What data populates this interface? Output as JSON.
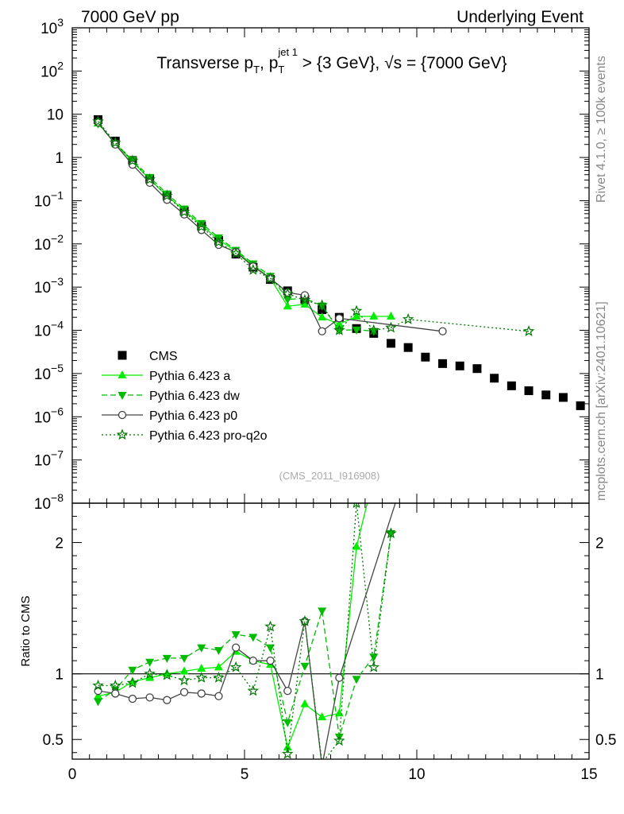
{
  "header": {
    "left": "7000 GeV pp",
    "right": "Underlying Event"
  },
  "title": {
    "pre": "Transverse p",
    "sub1": "T",
    "mid": ", p",
    "sub2": "T",
    "sup2": "jet 1",
    "post": " > {3 GeV}, √s = {7000 GeV}"
  },
  "side_labels": {
    "rivet": "Rivet 4.1.0, ≥ 100k events",
    "mcplots": "mcplots.cern.ch [arXiv:2401.10621]"
  },
  "watermark": "(CMS_2011_I916908)",
  "ratio_ylabel": "Ratio to CMS",
  "colors": {
    "cms": "#000000",
    "a": "#00ee00",
    "dw": "#00bb00",
    "p0": "#444444",
    "q2o": "#007700"
  },
  "chart_data": {
    "type": "line",
    "main": {
      "yscale": "log",
      "xlim": [
        0,
        15
      ],
      "ylim": [
        1e-08,
        1000
      ],
      "yticks": [
        {
          "v": 1000,
          "b": "10",
          "e": "3"
        },
        {
          "v": 100,
          "b": "10",
          "e": "2"
        },
        {
          "v": 10,
          "b": "10",
          "e": ""
        },
        {
          "v": 1,
          "b": "1",
          "e": ""
        },
        {
          "v": 0.1,
          "b": "10",
          "e": "−1"
        },
        {
          "v": 0.01,
          "b": "10",
          "e": "−2"
        },
        {
          "v": 0.001,
          "b": "10",
          "e": "−3"
        },
        {
          "v": 0.0001,
          "b": "10",
          "e": "−4"
        },
        {
          "v": 1e-05,
          "b": "10",
          "e": "−5"
        },
        {
          "v": 1e-06,
          "b": "10",
          "e": "−6"
        },
        {
          "v": 1e-07,
          "b": "10",
          "e": "−7"
        },
        {
          "v": 1e-08,
          "b": "10",
          "e": "−8"
        }
      ],
      "series": [
        {
          "name": "CMS",
          "key": "cms",
          "marker": "square",
          "dash": "none",
          "x": [
            0.75,
            1.25,
            1.75,
            2.25,
            2.75,
            3.25,
            3.75,
            4.25,
            4.75,
            5.25,
            5.75,
            6.25,
            6.75,
            7.25,
            7.75,
            8.25,
            8.75,
            9.25,
            9.75,
            10.25,
            10.75,
            11.25,
            11.75,
            12.25,
            12.75,
            13.25,
            13.75,
            14.25,
            14.75
          ],
          "y": [
            7.5,
            2.4,
            0.85,
            0.32,
            0.13,
            0.058,
            0.026,
            0.012,
            0.0058,
            0.0029,
            0.0015,
            0.00082,
            0.00052,
            0.0003,
            0.0002,
            0.00011,
            8.5e-05,
            5e-05,
            4e-05,
            2.4e-05,
            1.7e-05,
            1.5e-05,
            1.3e-05,
            7.8e-06,
            5.2e-06,
            4e-06,
            3.2e-06,
            2.8e-06,
            1.8e-06
          ]
        },
        {
          "name": "Pythia 6.423 a",
          "key": "a",
          "marker": "triangle-up",
          "dash": "none",
          "x": [
            0.75,
            1.25,
            1.75,
            2.25,
            2.75,
            3.25,
            3.75,
            4.25,
            4.75,
            5.25,
            5.75,
            6.25,
            6.75,
            7.25,
            7.75,
            8.25,
            8.75,
            9.25
          ],
          "y": [
            6.2,
            2.1,
            0.8,
            0.31,
            0.13,
            0.059,
            0.027,
            0.0125,
            0.0068,
            0.0032,
            0.0016,
            0.00036,
            0.0004,
            0.0002,
            0.00014,
            0.00021,
            0.00021,
            0.00021
          ]
        },
        {
          "name": "Pythia 6.423 dw",
          "key": "dw",
          "marker": "triangle-down",
          "dash": "7,4",
          "x": [
            0.75,
            1.25,
            1.75,
            2.25,
            2.75,
            3.25,
            3.75,
            4.25,
            4.75,
            5.25,
            5.75,
            6.25,
            6.75,
            7.25,
            7.75,
            8.25,
            8.75
          ],
          "y": [
            6.0,
            2.1,
            0.88,
            0.35,
            0.145,
            0.065,
            0.03,
            0.014,
            0.0072,
            0.0035,
            0.0018,
            0.00052,
            0.00055,
            0.00037,
            0.0001,
            0.000103,
            9.6e-05
          ]
        },
        {
          "name": "Pythia 6.423 p0",
          "key": "p0",
          "marker": "circle",
          "dash": "none",
          "x": [
            0.75,
            1.25,
            1.75,
            2.25,
            2.75,
            3.25,
            3.75,
            4.25,
            4.75,
            5.25,
            5.75,
            6.25,
            6.75,
            7.25,
            7.75,
            10.75
          ],
          "y": [
            6.5,
            2.0,
            0.68,
            0.26,
            0.105,
            0.048,
            0.021,
            0.0095,
            0.0065,
            0.003,
            0.0016,
            0.00075,
            0.00065,
            9.5e-05,
            0.00019,
            9.5e-05
          ]
        },
        {
          "name": "Pythia 6.423 pro-q2o",
          "key": "q2o",
          "marker": "star",
          "dash": "2,3",
          "x": [
            0.75,
            1.25,
            1.75,
            2.25,
            2.75,
            3.25,
            3.75,
            4.25,
            4.75,
            5.25,
            5.75,
            6.25,
            6.75,
            7.25,
            7.75,
            8.25,
            8.75,
            9.25,
            9.75,
            13.25
          ],
          "y": [
            6.8,
            2.2,
            0.84,
            0.31,
            0.13,
            0.055,
            0.025,
            0.011,
            0.006,
            0.0025,
            0.0016,
            0.0007,
            0.0005,
            0.00038,
            0.0001,
            0.00028,
            0.0001,
            0.000115,
            0.00018,
            9.5e-05
          ]
        }
      ]
    },
    "ratio": {
      "ylim": [
        0.35,
        2.3
      ],
      "yticks": [
        {
          "v": 0.5,
          "l": "0.5"
        },
        {
          "v": 1,
          "l": "1"
        },
        {
          "v": 2,
          "l": "2"
        }
      ],
      "xticks": [
        0,
        5,
        10,
        15
      ],
      "series": [
        {
          "key": "a",
          "marker": "triangle-up",
          "dash": "none",
          "x": [
            0.75,
            1.25,
            1.75,
            2.25,
            2.75,
            3.25,
            3.75,
            4.25,
            4.75,
            5.25,
            5.75,
            6.25,
            6.75,
            7.25,
            7.75,
            8.25,
            8.75
          ],
          "y": [
            0.83,
            0.86,
            0.94,
            0.97,
            1.0,
            1.02,
            1.04,
            1.05,
            1.17,
            1.1,
            1.07,
            0.44,
            0.77,
            0.67,
            0.7,
            1.97,
            2.5
          ]
        },
        {
          "key": "dw",
          "marker": "triangle-down",
          "dash": "7,4",
          "x": [
            0.75,
            1.25,
            1.75,
            2.25,
            2.75,
            3.25,
            3.75,
            4.25,
            4.75,
            5.25,
            5.75,
            6.25,
            6.75,
            7.25,
            7.75,
            8.25,
            8.75,
            9.25
          ],
          "y": [
            0.79,
            0.88,
            1.03,
            1.09,
            1.12,
            1.12,
            1.2,
            1.18,
            1.3,
            1.28,
            1.2,
            0.63,
            1.06,
            1.48,
            0.52,
            0.96,
            1.13,
            2.07
          ]
        },
        {
          "key": "p0",
          "marker": "circle",
          "dash": "none",
          "x": [
            0.75,
            1.25,
            1.75,
            2.25,
            2.75,
            3.25,
            3.75,
            4.25,
            4.75,
            5.25,
            5.75,
            6.25,
            6.75,
            7.25,
            7.75,
            9.5
          ],
          "y": [
            0.87,
            0.85,
            0.81,
            0.82,
            0.8,
            0.86,
            0.85,
            0.83,
            1.2,
            1.1,
            1.1,
            0.87,
            1.4,
            0.3,
            0.97,
            2.4
          ]
        },
        {
          "key": "q2o",
          "marker": "star",
          "dash": "2,3",
          "x": [
            0.75,
            1.25,
            1.75,
            2.25,
            2.75,
            3.25,
            3.75,
            4.25,
            4.75,
            5.25,
            5.75,
            6.25,
            6.75,
            7.25,
            7.75,
            8.25,
            8.75,
            9.25
          ],
          "y": [
            0.91,
            0.91,
            0.93,
            1.0,
            0.99,
            0.95,
            0.97,
            0.97,
            1.05,
            0.87,
            1.36,
            0.39,
            1.4,
            0.32,
            0.49,
            2.3,
            1.05,
            2.07
          ]
        }
      ]
    }
  },
  "legend": [
    {
      "key": "cms",
      "label": "CMS"
    },
    {
      "key": "a",
      "label": "Pythia 6.423 a"
    },
    {
      "key": "dw",
      "label": "Pythia 6.423 dw"
    },
    {
      "key": "p0",
      "label": "Pythia 6.423 p0"
    },
    {
      "key": "q2o",
      "label": "Pythia 6.423 pro-q2o"
    }
  ]
}
